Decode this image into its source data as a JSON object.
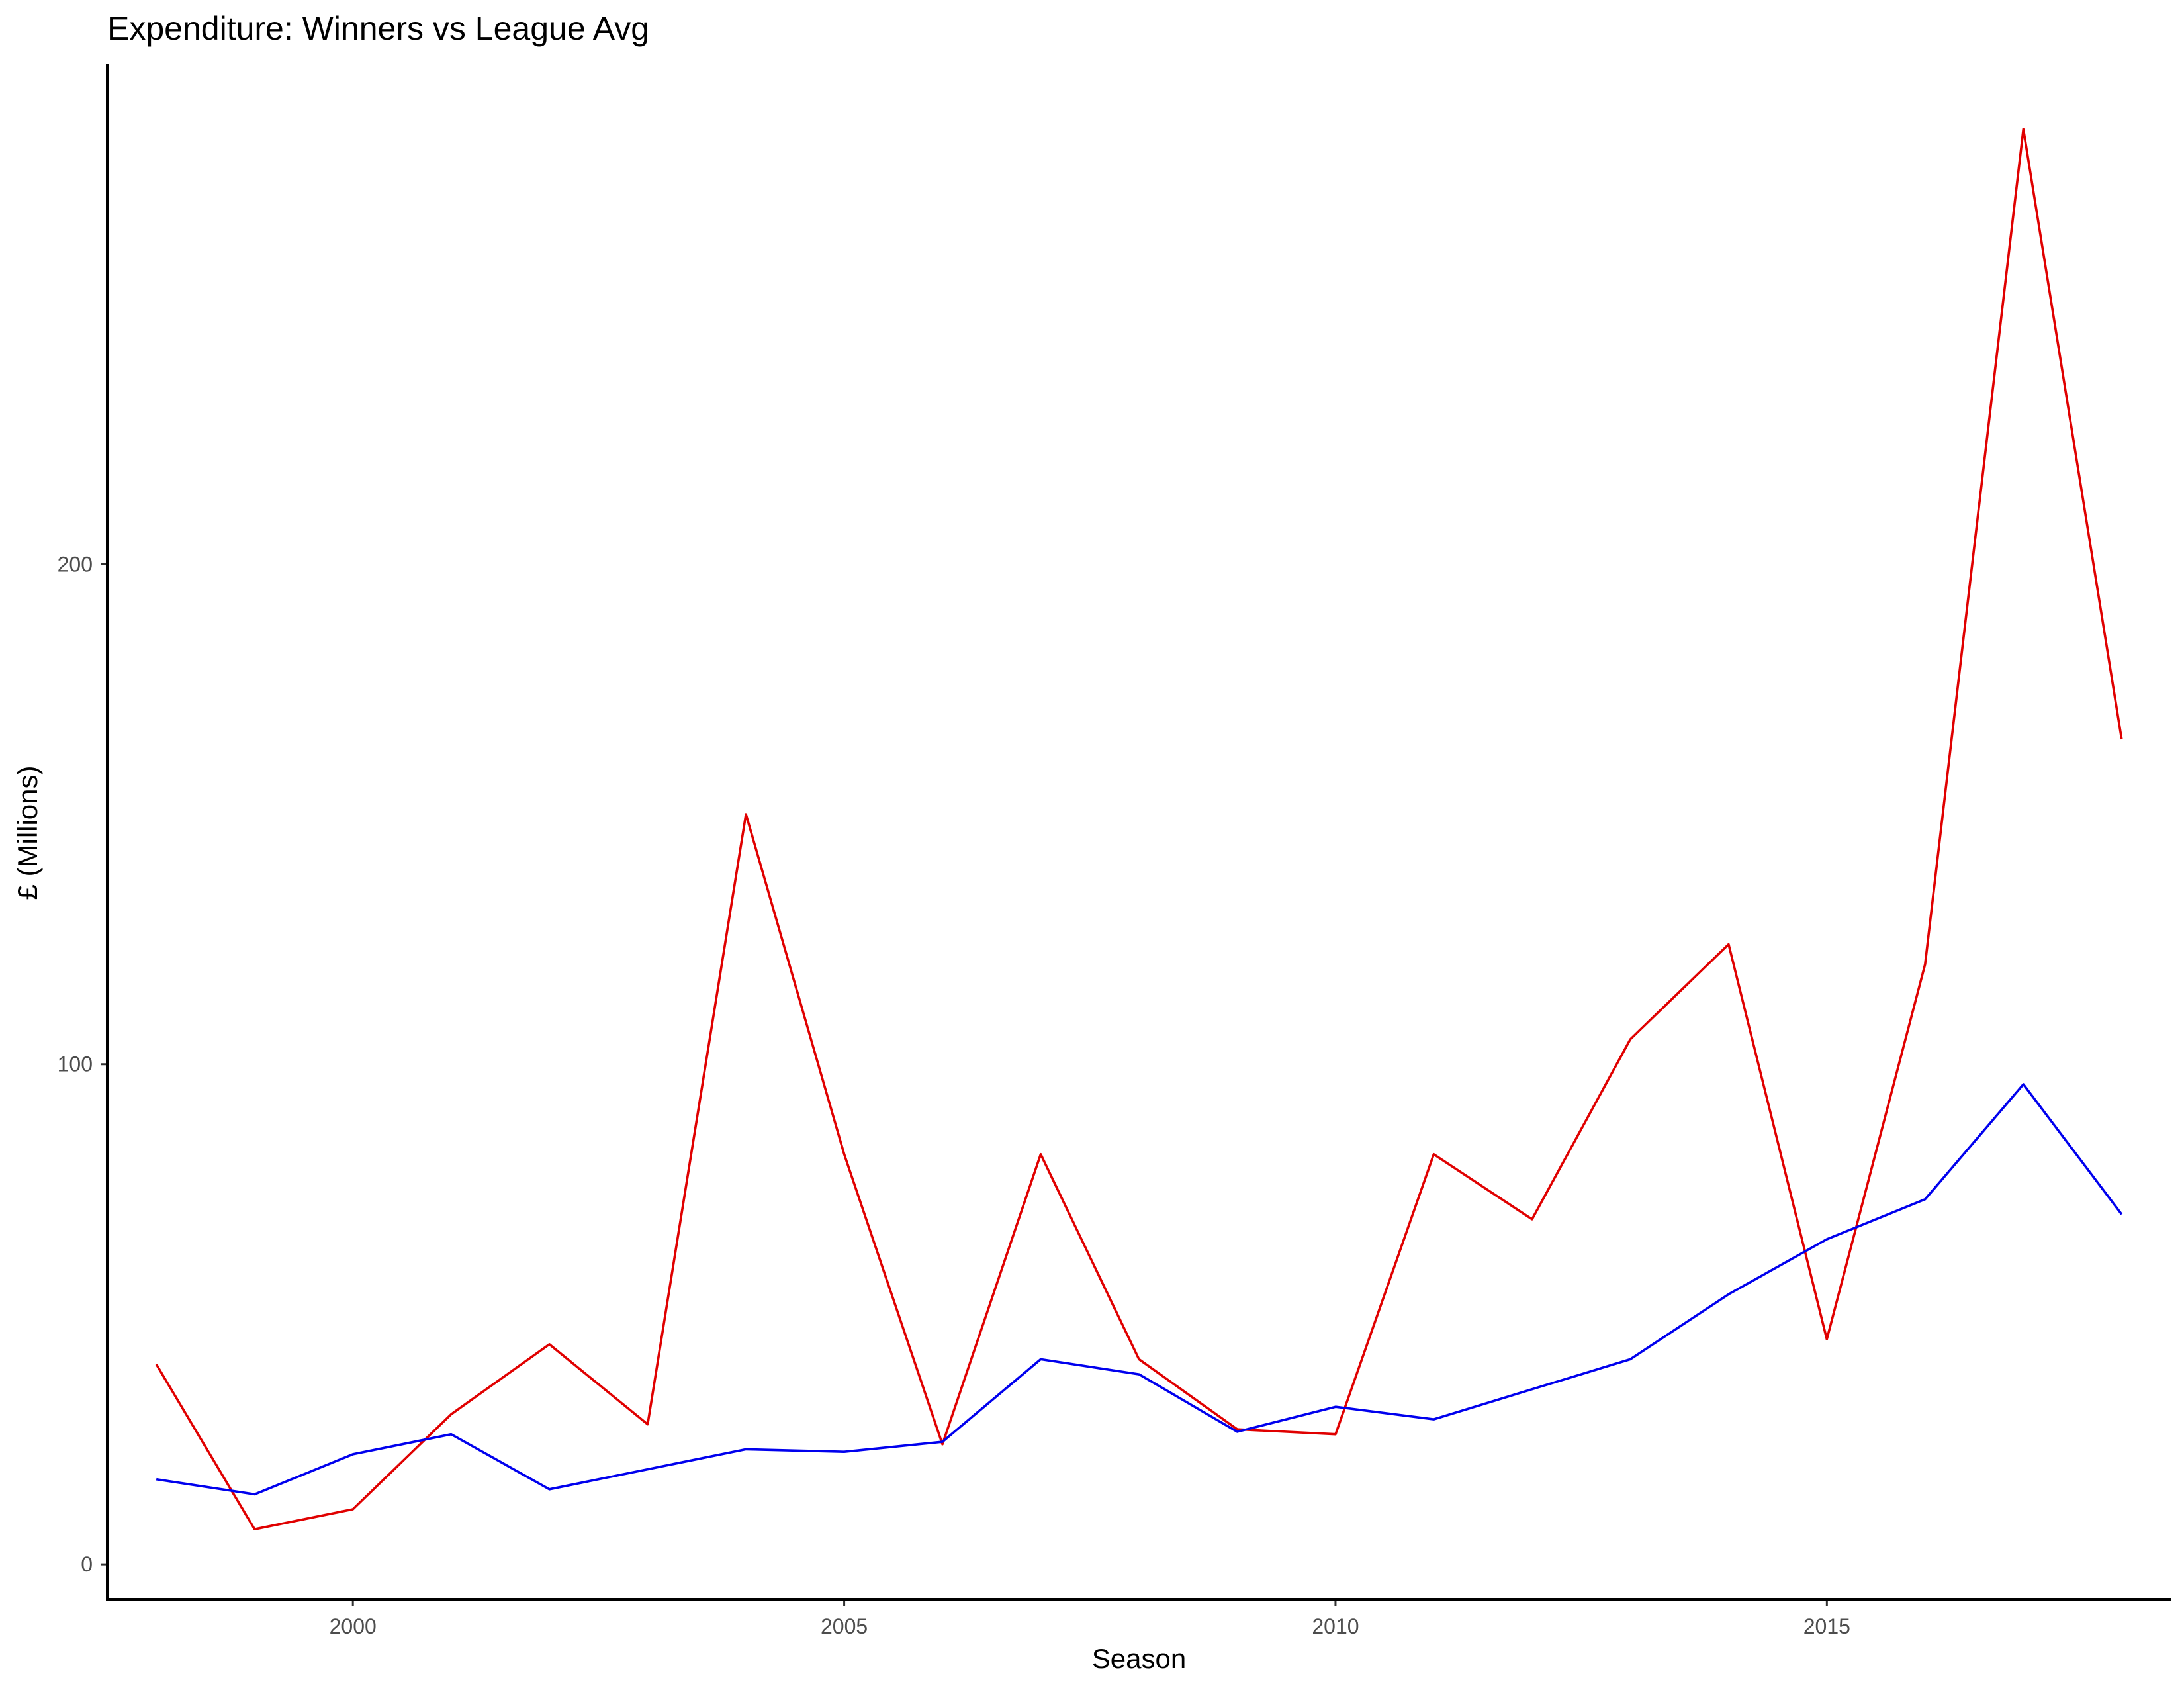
{
  "chart_data": {
    "type": "line",
    "title": "Expenditure: Winners vs League Avg",
    "xlabel": "Season",
    "ylabel": "£ (Millions)",
    "xlim": [
      1997.5,
      2018.5
    ],
    "ylim": [
      -7,
      300
    ],
    "x_ticks": [
      2000,
      2005,
      2010,
      2015
    ],
    "y_ticks": [
      0,
      100,
      200
    ],
    "x_tick_labels": [
      "2000",
      "2005",
      "2010",
      "2015"
    ],
    "y_tick_labels": [
      "0",
      "100",
      "200"
    ],
    "grid": false,
    "legend": "none",
    "x": [
      1998,
      1999,
      2000,
      2001,
      2002,
      2003,
      2004,
      2005,
      2006,
      2007,
      2008,
      2009,
      2010,
      2011,
      2012,
      2013,
      2014,
      2015,
      2016,
      2017,
      2018
    ],
    "series": [
      {
        "color": "#e00000",
        "values": [
          40,
          7,
          11,
          30,
          44,
          28,
          150,
          82,
          24,
          82,
          41,
          27,
          26,
          82,
          69,
          105,
          124,
          45,
          120,
          287,
          165
        ]
      },
      {
        "color": "#0000ee",
        "values": [
          17,
          14,
          22,
          26,
          15,
          19,
          23,
          22.5,
          24.5,
          41,
          38,
          26.5,
          31.5,
          29,
          35,
          41,
          54,
          65,
          73,
          96,
          70
        ]
      }
    ]
  }
}
